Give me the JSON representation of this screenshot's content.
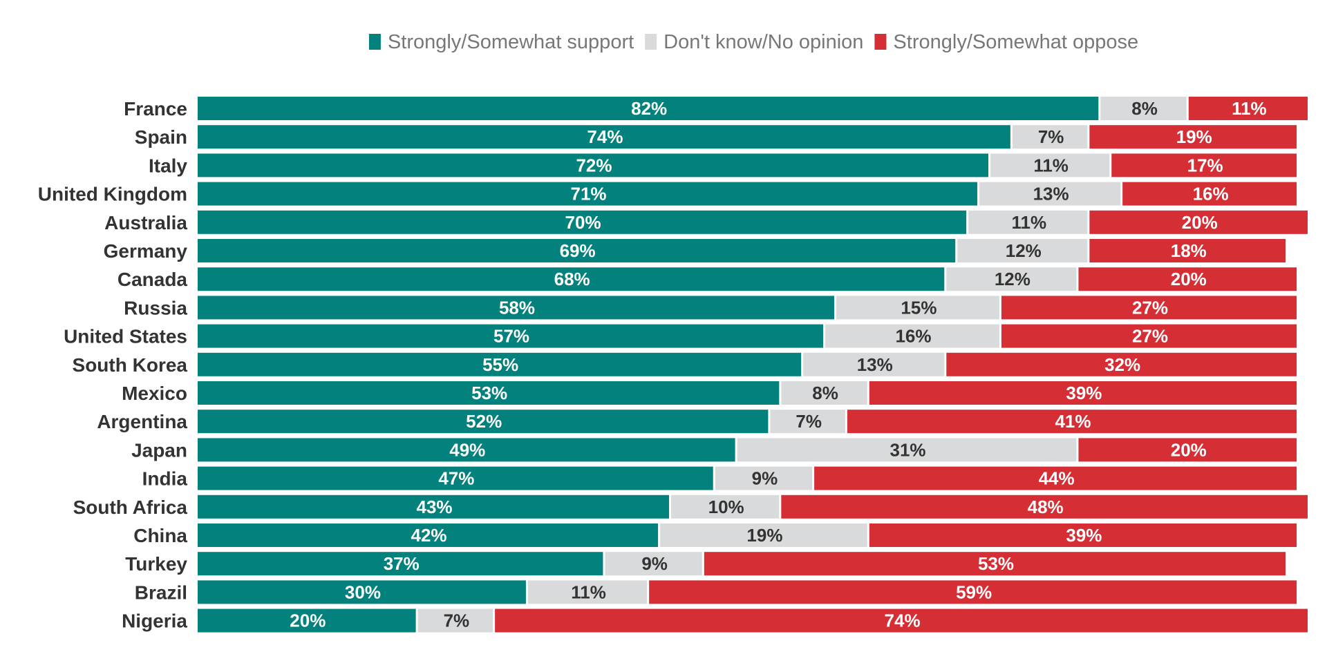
{
  "chart_data": {
    "type": "bar",
    "orientation": "horizontal",
    "stacked": true,
    "legend_position": "top",
    "grid": false,
    "xlim": [
      0,
      101
    ],
    "categories": [
      "France",
      "Spain",
      "Italy",
      "United Kingdom",
      "Australia",
      "Germany",
      "Canada",
      "Russia",
      "United States",
      "South Korea",
      "Mexico",
      "Argentina",
      "Japan",
      "India",
      "South Africa",
      "China",
      "Turkey",
      "Brazil",
      "Nigeria"
    ],
    "series": [
      {
        "name": "Strongly/Somewhat support",
        "color": "#02817d",
        "label_color": "#ffffff",
        "values": [
          82,
          74,
          72,
          71,
          70,
          69,
          68,
          58,
          57,
          55,
          53,
          52,
          49,
          47,
          43,
          42,
          37,
          30,
          20
        ]
      },
      {
        "name": "Don't know/No opinion",
        "color": "#d8dadb",
        "label_color": "#333333",
        "values": [
          8,
          7,
          11,
          13,
          11,
          12,
          12,
          15,
          16,
          13,
          8,
          7,
          31,
          9,
          10,
          19,
          9,
          11,
          7
        ]
      },
      {
        "name": "Strongly/Somewhat oppose",
        "color": "#d52e35",
        "label_color": "#ffffff",
        "values": [
          11,
          19,
          17,
          16,
          20,
          18,
          20,
          27,
          27,
          32,
          39,
          41,
          20,
          44,
          48,
          39,
          53,
          59,
          74
        ]
      }
    ],
    "value_suffix": "%"
  }
}
